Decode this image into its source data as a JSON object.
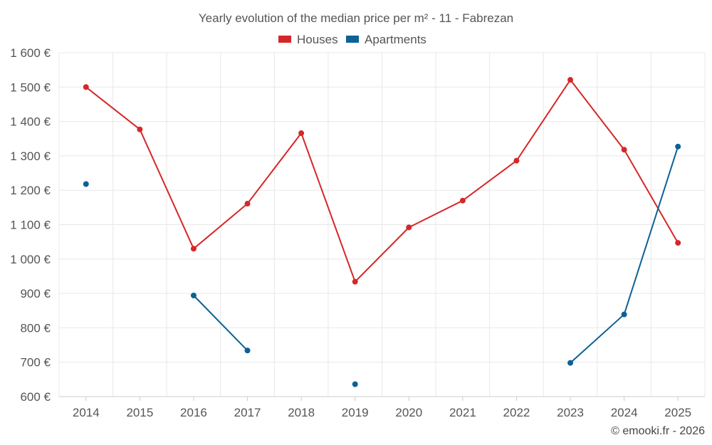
{
  "chart_data": {
    "type": "line",
    "title": "Yearly evolution of the median price per m² - 11 - Fabrezan",
    "categories": [
      "2014",
      "2015",
      "2016",
      "2017",
      "2018",
      "2019",
      "2020",
      "2021",
      "2022",
      "2023",
      "2024",
      "2025"
    ],
    "series": [
      {
        "name": "Houses",
        "color": "#d62728",
        "values": [
          1500,
          1377,
          1030,
          1161,
          1366,
          934,
          1092,
          1170,
          1286,
          1521,
          1318,
          1047
        ]
      },
      {
        "name": "Apartments",
        "color": "#0c6196",
        "values": [
          1218,
          null,
          894,
          734,
          null,
          636,
          null,
          null,
          null,
          698,
          839,
          1327
        ]
      }
    ],
    "y_ticks": [
      "600 €",
      "700 €",
      "800 €",
      "900 €",
      "1 000 €",
      "1 100 €",
      "1 200 €",
      "1 300 €",
      "1 400 €",
      "1 500 €",
      "1 600 €"
    ],
    "ylim": [
      600,
      1600
    ],
    "xlabel": "",
    "ylabel": "",
    "legend_position": "top-center",
    "grid": true
  },
  "credit": "© emooki.fr - 2026"
}
